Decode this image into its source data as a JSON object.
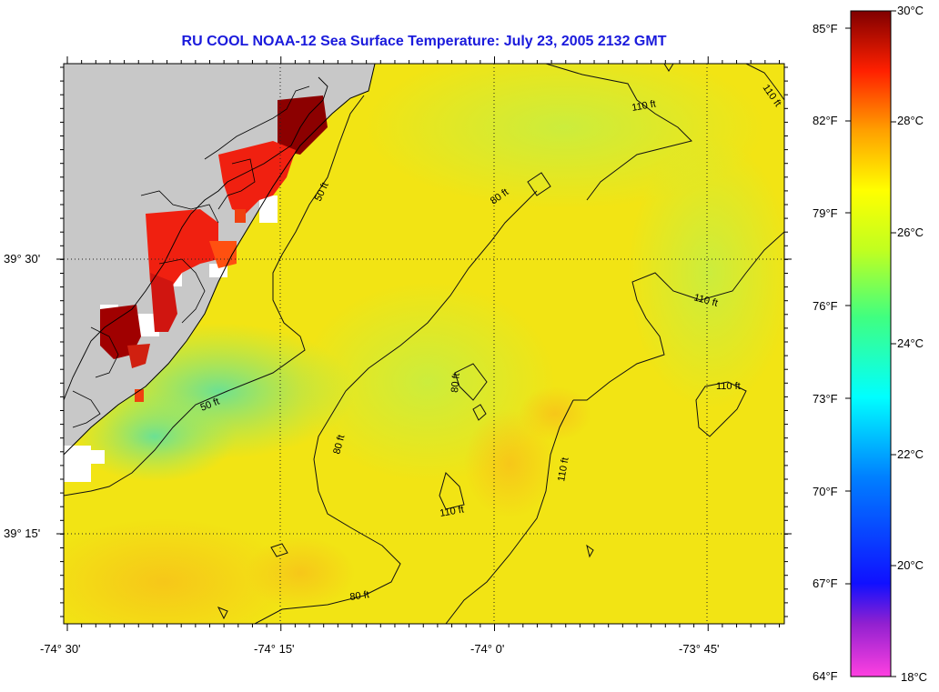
{
  "title": "RU COOL  NOAA-12  Sea Surface Temperature:  July 23, 2005 2132 GMT",
  "map": {
    "lon_ticks": [
      "-74° 30'",
      "-74° 15'",
      "-74° 0'",
      "-73° 45'"
    ],
    "lat_ticks": [
      "39° 30'",
      "39° 15'"
    ],
    "contour_labels": [
      "50 ft",
      "50 ft",
      "80 ft",
      "80 ft",
      "80 ft",
      "80 ft",
      "110 ft",
      "110 ft",
      "110 ft",
      "110 ft",
      "110 ft",
      "110 ft"
    ],
    "land_color": "#c8c8c8",
    "sea_color": "#f2e414"
  },
  "colorbar": {
    "fahrenheit_labels": [
      "85°F",
      "82°F",
      "79°F",
      "76°F",
      "73°F",
      "70°F",
      "67°F",
      "64°F"
    ],
    "celsius_labels": [
      "30°C",
      "28°C",
      "26°C",
      "24°C",
      "22°C",
      "20°C",
      "18°C"
    ]
  }
}
